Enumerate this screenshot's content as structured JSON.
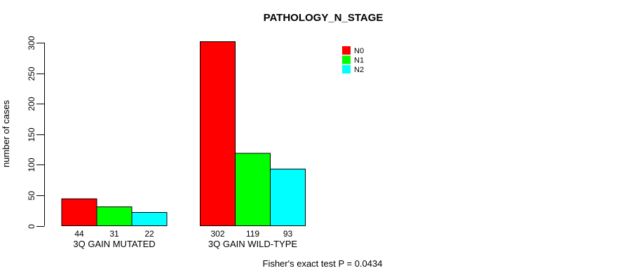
{
  "chart_data": {
    "type": "bar",
    "title": "PATHOLOGY_N_STAGE",
    "xlabel": "",
    "ylabel": "number of cases",
    "ylim": [
      0,
      300
    ],
    "yticks": [
      0,
      50,
      100,
      150,
      200,
      250,
      300
    ],
    "categories": [
      "3Q GAIN MUTATED",
      "3Q GAIN WILD-TYPE"
    ],
    "series": [
      {
        "name": "N0",
        "color": "#ff0000",
        "values": [
          44,
          302
        ]
      },
      {
        "name": "N1",
        "color": "#00ff00",
        "values": [
          31,
          119
        ]
      },
      {
        "name": "N2",
        "color": "#00ffff",
        "values": [
          22,
          93
        ]
      }
    ],
    "grid": false,
    "legend_position": "top-right",
    "bar_border_color": "#000000",
    "axis_color": "#000000",
    "annotation": "Fisher's exact test P = 0.0434"
  }
}
